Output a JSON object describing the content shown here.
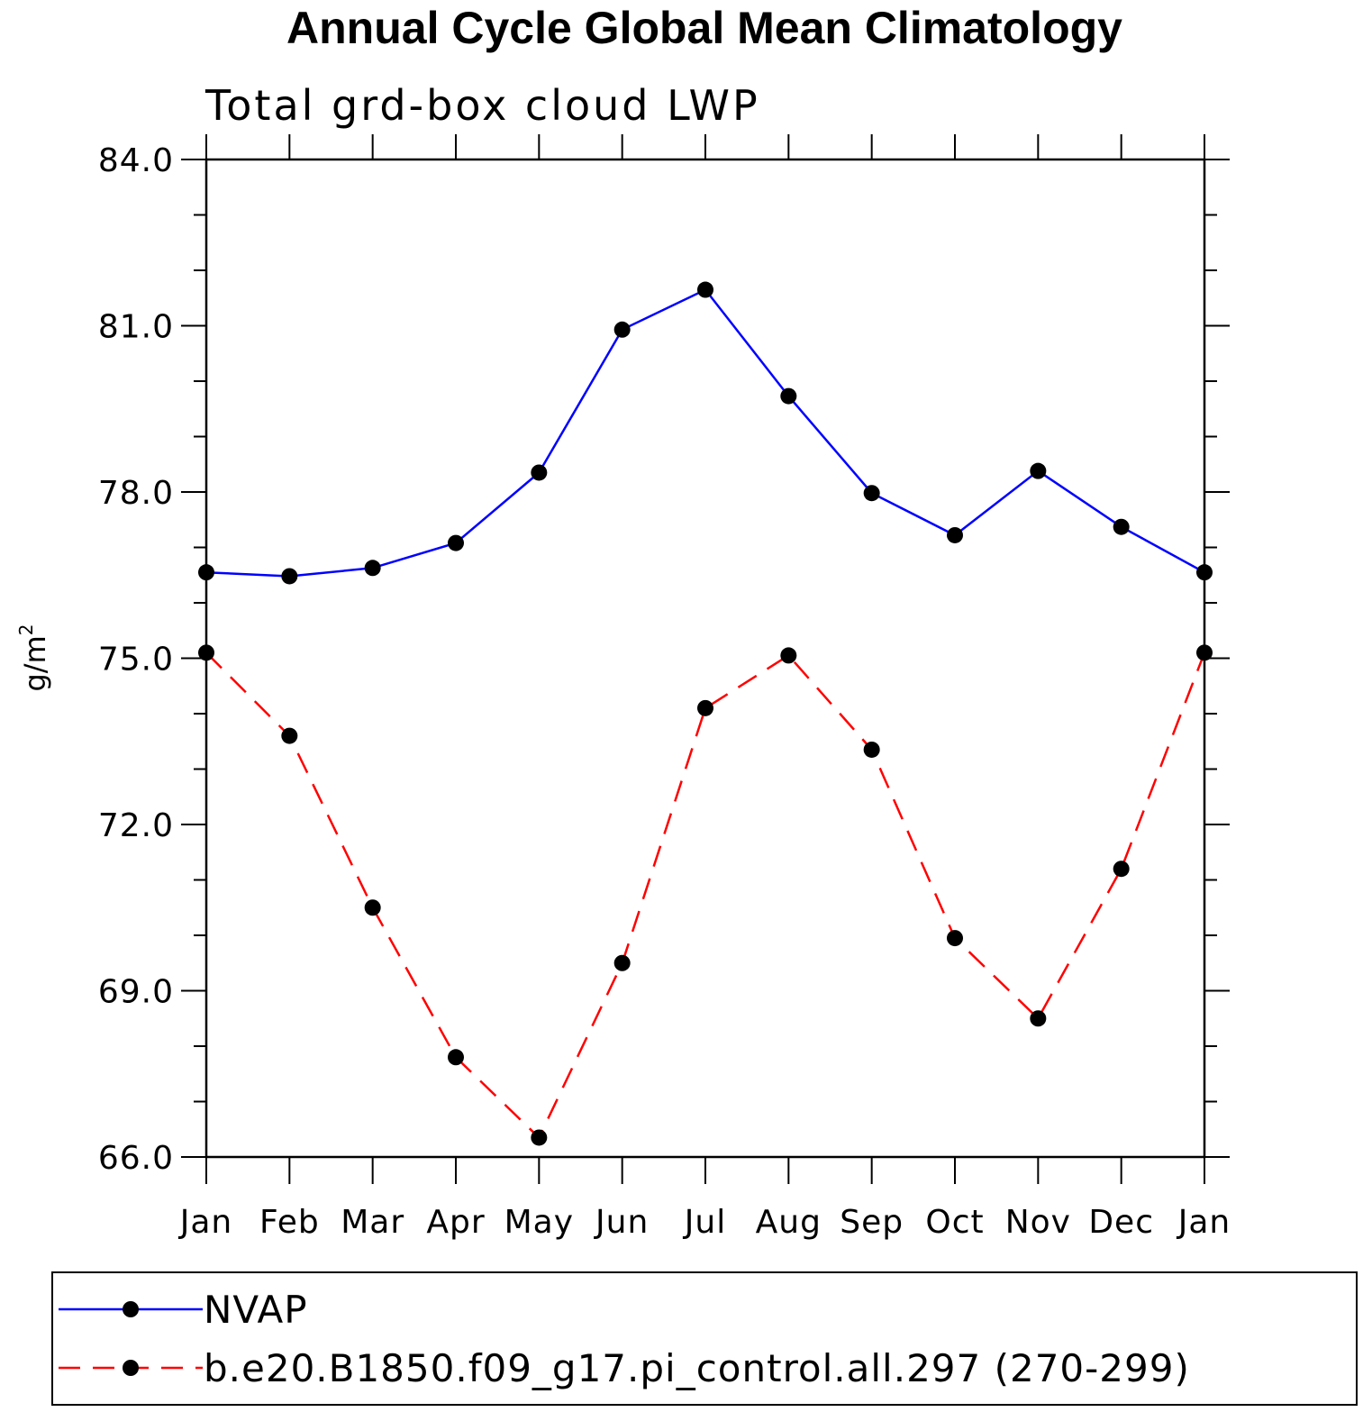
{
  "chart_data": {
    "type": "line",
    "title": "Annual Cycle Global Mean Climatology",
    "subtitle": "Total grd-box cloud LWP",
    "ylabel": "g/m",
    "ylabel_superscript": "2",
    "categories": [
      "Jan",
      "Feb",
      "Mar",
      "Apr",
      "May",
      "Jun",
      "Jul",
      "Aug",
      "Sep",
      "Oct",
      "Nov",
      "Dec",
      "Jan"
    ],
    "ylim": [
      66.0,
      84.0
    ],
    "yticks": [
      "84.0",
      "81.0",
      "78.0",
      "75.0",
      "72.0",
      "69.0",
      "66.0"
    ],
    "ytick_values": [
      84,
      81,
      78,
      75,
      72,
      69,
      66
    ],
    "grid": false,
    "legend_position": "bottom",
    "series": [
      {
        "name": "NVAP",
        "color": "#0000ff",
        "dash": "solid",
        "marker": "filled-circle",
        "values": [
          76.55,
          76.48,
          76.63,
          77.08,
          78.35,
          80.93,
          81.65,
          79.73,
          77.98,
          77.22,
          78.38,
          77.37,
          76.55
        ]
      },
      {
        "name": "b.e20.B1850.f09_g17.pi_control.all.297 (270-299)",
        "color": "#ff0000",
        "dash": "dashed",
        "marker": "filled-circle",
        "values": [
          75.1,
          73.6,
          70.5,
          67.8,
          66.35,
          69.5,
          74.1,
          75.05,
          73.35,
          69.95,
          68.5,
          71.2,
          75.1
        ]
      }
    ]
  }
}
